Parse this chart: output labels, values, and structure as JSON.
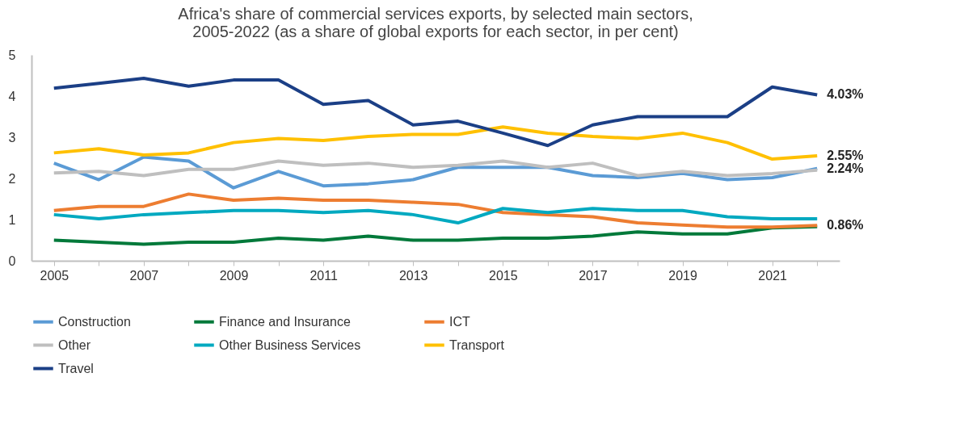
{
  "chart_data": {
    "type": "line",
    "title": [
      "Africa's share of commercial services exports, by selected main sectors,",
      "2005-2022 (as a share of global exports for each sector, in per cent)"
    ],
    "x": [
      2005,
      2006,
      2007,
      2008,
      2009,
      2010,
      2011,
      2012,
      2013,
      2014,
      2015,
      2016,
      2017,
      2018,
      2019,
      2020,
      2021,
      2022
    ],
    "xlim": [
      2004.5,
      2022.5
    ],
    "xticks": [
      2005,
      {
        "value": 2006,
        "label": null
      },
      2007,
      {
        "value": 2008,
        "label": null
      },
      2009,
      {
        "value": 2010,
        "label": null
      },
      2011,
      {
        "value": 2012,
        "label": null
      },
      2013,
      {
        "value": 2014,
        "label": null
      },
      2015,
      {
        "value": 2016,
        "label": null
      },
      2017,
      {
        "value": 2018,
        "label": null
      },
      2019,
      {
        "value": 2020,
        "label": null
      },
      2021,
      {
        "value": 2022,
        "label": null
      }
    ],
    "ylim": [
      0,
      5
    ],
    "yticks": [
      0,
      1,
      2,
      3,
      4,
      5
    ],
    "grid": false,
    "legend": "bottom",
    "marker": "none",
    "line_style": "solid",
    "series": [
      {
        "name": "Construction",
        "color": "#5b9bd5",
        "values": [
          2.37,
          1.97,
          2.52,
          2.42,
          1.77,
          2.17,
          1.82,
          1.87,
          1.97,
          2.27,
          2.27,
          2.27,
          2.07,
          2.02,
          2.12,
          1.97,
          2.02,
          2.24
        ],
        "value_labels": [
          null,
          null,
          null,
          null,
          null,
          null,
          null,
          null,
          null,
          null,
          null,
          null,
          null,
          null,
          null,
          null,
          null,
          "2.24%"
        ]
      },
      {
        "name": "Finance and Insurance",
        "color": "#00793a",
        "values": [
          0.5,
          0.45,
          0.4,
          0.45,
          0.45,
          0.55,
          0.5,
          0.6,
          0.5,
          0.5,
          0.55,
          0.55,
          0.6,
          0.7,
          0.65,
          0.65,
          0.8,
          0.83
        ]
      },
      {
        "name": "ICT",
        "color": "#ed7d31",
        "values": [
          1.22,
          1.32,
          1.32,
          1.62,
          1.47,
          1.52,
          1.47,
          1.47,
          1.42,
          1.37,
          1.17,
          1.12,
          1.07,
          0.92,
          0.87,
          0.82,
          0.82,
          0.86
        ],
        "value_labels": [
          null,
          null,
          null,
          null,
          null,
          null,
          null,
          null,
          null,
          null,
          null,
          null,
          null,
          null,
          null,
          null,
          null,
          "0.86%"
        ]
      },
      {
        "name": "Other",
        "color": "#bfbfbf",
        "values": [
          2.13,
          2.17,
          2.07,
          2.22,
          2.22,
          2.42,
          2.32,
          2.37,
          2.27,
          2.32,
          2.42,
          2.27,
          2.37,
          2.07,
          2.17,
          2.07,
          2.12,
          2.2
        ]
      },
      {
        "name": "Other Business Services",
        "color": "#00a9c0",
        "values": [
          1.12,
          1.02,
          1.12,
          1.17,
          1.22,
          1.22,
          1.17,
          1.22,
          1.12,
          0.92,
          1.27,
          1.17,
          1.27,
          1.22,
          1.22,
          1.07,
          1.02,
          1.02
        ]
      },
      {
        "name": "Transport",
        "color": "#ffc000",
        "values": [
          2.62,
          2.72,
          2.57,
          2.62,
          2.87,
          2.97,
          2.92,
          3.02,
          3.07,
          3.07,
          3.25,
          3.1,
          3.02,
          2.97,
          3.1,
          2.87,
          2.47,
          2.55
        ],
        "value_labels": [
          null,
          null,
          null,
          null,
          null,
          null,
          null,
          null,
          null,
          null,
          null,
          null,
          null,
          null,
          null,
          null,
          null,
          "2.55%"
        ]
      },
      {
        "name": "Travel",
        "color": "#1b3f86",
        "values": [
          4.19,
          4.31,
          4.43,
          4.24,
          4.39,
          4.39,
          3.8,
          3.89,
          3.3,
          3.39,
          3.1,
          2.8,
          3.3,
          3.5,
          3.5,
          3.5,
          4.22,
          4.03
        ],
        "value_labels": [
          null,
          null,
          null,
          null,
          null,
          null,
          null,
          null,
          null,
          null,
          null,
          null,
          null,
          null,
          null,
          null,
          null,
          "4.03%"
        ]
      }
    ]
  }
}
